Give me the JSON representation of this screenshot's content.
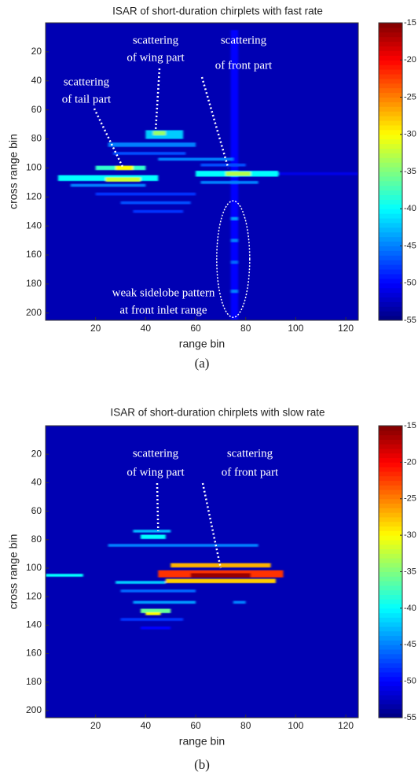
{
  "chart_data": [
    {
      "type": "heatmap",
      "title": "ISAR of short-duration chirplets with fast rate",
      "xlabel": "range bin",
      "ylabel": "cross range bin",
      "caption": "(a)",
      "xlim": [
        0,
        125
      ],
      "ylim": [
        0,
        205
      ],
      "xticks": [
        20,
        40,
        60,
        80,
        100,
        120
      ],
      "yticks": [
        20,
        40,
        60,
        80,
        100,
        120,
        140,
        160,
        180,
        200
      ],
      "clim": [
        -55,
        -15
      ],
      "cticks": [
        -15,
        -20,
        -25,
        -30,
        -35,
        -40,
        -45,
        -50,
        -55
      ],
      "background_value": -53,
      "streaks": [
        {
          "x": [
            74,
            77
          ],
          "y": 105,
          "h": 200,
          "value": -50
        },
        {
          "x": [
            40,
            55
          ],
          "y": 77,
          "h": 6,
          "value": -42
        },
        {
          "x": [
            43,
            48
          ],
          "y": 76,
          "h": 3,
          "value": -34
        },
        {
          "x": [
            25,
            60
          ],
          "y": 84,
          "h": 3,
          "value": -45
        },
        {
          "x": [
            27,
            56
          ],
          "y": 90,
          "h": 2,
          "value": -47
        },
        {
          "x": [
            45,
            75
          ],
          "y": 94,
          "h": 2,
          "value": -45
        },
        {
          "x": [
            20,
            40
          ],
          "y": 100,
          "h": 3,
          "value": -38
        },
        {
          "x": [
            28,
            35
          ],
          "y": 100,
          "h": 3,
          "value": -30
        },
        {
          "x": [
            5,
            45
          ],
          "y": 107,
          "h": 4,
          "value": -40
        },
        {
          "x": [
            24,
            38
          ],
          "y": 108,
          "h": 3,
          "value": -32
        },
        {
          "x": [
            10,
            40
          ],
          "y": 112,
          "h": 2,
          "value": -45
        },
        {
          "x": [
            20,
            60
          ],
          "y": 118,
          "h": 2,
          "value": -48
        },
        {
          "x": [
            30,
            58
          ],
          "y": 124,
          "h": 2,
          "value": -47
        },
        {
          "x": [
            35,
            55
          ],
          "y": 130,
          "h": 2,
          "value": -48
        },
        {
          "x": [
            62,
            80
          ],
          "y": 98,
          "h": 2,
          "value": -47
        },
        {
          "x": [
            60,
            93
          ],
          "y": 104,
          "h": 4,
          "value": -40
        },
        {
          "x": [
            72,
            82
          ],
          "y": 104,
          "h": 3,
          "value": -33
        },
        {
          "x": [
            62,
            85
          ],
          "y": 110,
          "h": 2,
          "value": -45
        },
        {
          "x": [
            93,
            125
          ],
          "y": 104,
          "h": 2,
          "value": -51
        },
        {
          "x": [
            74,
            77
          ],
          "y": 135,
          "h": 2,
          "value": -44
        },
        {
          "x": [
            74,
            77
          ],
          "y": 150,
          "h": 2,
          "value": -45
        },
        {
          "x": [
            74,
            77
          ],
          "y": 165,
          "h": 2,
          "value": -46
        },
        {
          "x": [
            74,
            77
          ],
          "y": 185,
          "h": 2,
          "value": -45
        }
      ],
      "annotations": [
        {
          "lines": [
            "scattering",
            "of tail part"
          ],
          "xy": [
            31,
            100
          ]
        },
        {
          "lines": [
            "scattering",
            "of wing part"
          ],
          "xy": [
            44,
            74
          ]
        },
        {
          "lines": [
            "scattering",
            "of front part"
          ],
          "xy": [
            73,
            100
          ]
        },
        {
          "lines": [
            "weak sidelobe pattern",
            "at front inlet range"
          ],
          "xy": [
            75,
            165
          ]
        }
      ]
    },
    {
      "type": "heatmap",
      "title": "ISAR of short-duration chirplets with slow rate",
      "xlabel": "range bin",
      "ylabel": "cross range bin",
      "caption": "(b)",
      "xlim": [
        0,
        125
      ],
      "ylim": [
        0,
        205
      ],
      "xticks": [
        20,
        40,
        60,
        80,
        100,
        120
      ],
      "yticks": [
        20,
        40,
        60,
        80,
        100,
        120,
        140,
        160,
        180,
        200
      ],
      "clim": [
        -55,
        -15
      ],
      "cticks": [
        -15,
        -20,
        -25,
        -30,
        -35,
        -40,
        -45,
        -50,
        -55
      ],
      "background_value": -53,
      "streaks": [
        {
          "x": [
            35,
            50
          ],
          "y": 74,
          "h": 2,
          "value": -43
        },
        {
          "x": [
            38,
            48
          ],
          "y": 78,
          "h": 3,
          "value": -40
        },
        {
          "x": [
            25,
            85
          ],
          "y": 84,
          "h": 2,
          "value": -45
        },
        {
          "x": [
            0,
            15
          ],
          "y": 105,
          "h": 2,
          "value": -40
        },
        {
          "x": [
            50,
            90
          ],
          "y": 98,
          "h": 3,
          "value": -27
        },
        {
          "x": [
            45,
            95
          ],
          "y": 104,
          "h": 5,
          "value": -22
        },
        {
          "x": [
            58,
            82
          ],
          "y": 105,
          "h": 3,
          "value": -16
        },
        {
          "x": [
            48,
            92
          ],
          "y": 109,
          "h": 3,
          "value": -28
        },
        {
          "x": [
            28,
            48
          ],
          "y": 110,
          "h": 2,
          "value": -42
        },
        {
          "x": [
            30,
            60
          ],
          "y": 116,
          "h": 2,
          "value": -46
        },
        {
          "x": [
            35,
            60
          ],
          "y": 124,
          "h": 2,
          "value": -44
        },
        {
          "x": [
            75,
            80
          ],
          "y": 124,
          "h": 2,
          "value": -45
        },
        {
          "x": [
            38,
            50
          ],
          "y": 130,
          "h": 3,
          "value": -36
        },
        {
          "x": [
            40,
            46
          ],
          "y": 132,
          "h": 2,
          "value": -30
        },
        {
          "x": [
            30,
            55
          ],
          "y": 136,
          "h": 2,
          "value": -48
        },
        {
          "x": [
            38,
            50
          ],
          "y": 142,
          "h": 2,
          "value": -50
        }
      ],
      "annotations": [
        {
          "lines": [
            "scattering",
            "of wing part"
          ],
          "xy": [
            45,
            74
          ]
        },
        {
          "lines": [
            "scattering",
            "of front part"
          ],
          "xy": [
            70,
            100
          ]
        }
      ]
    }
  ]
}
